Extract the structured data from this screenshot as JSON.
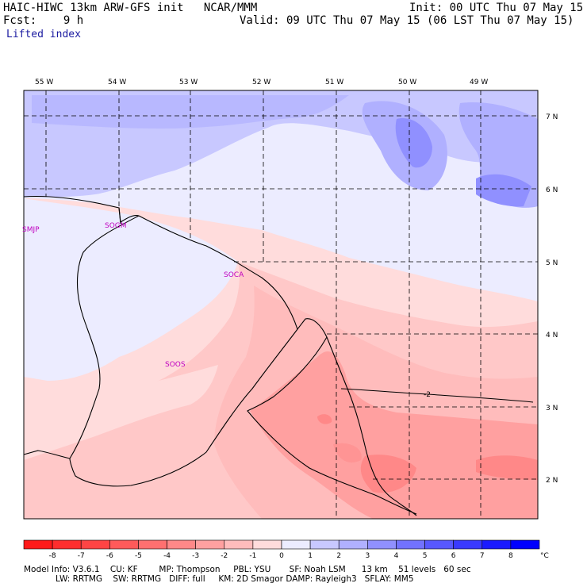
{
  "header": {
    "line1_left": "HAIC-HIWC 13km ARW-GFS init   NCAR/MMM",
    "line1_right": "Init: 00 UTC Thu 07 May 15",
    "line2_left": "Fcst:    9 h",
    "line2_right": "Valid: 09 UTC Thu 07 May 15 (06 LST Thu 07 May 15)",
    "field": "Lifted index"
  },
  "map": {
    "lon_labels": [
      "55 W",
      "54 W",
      "53 W",
      "52 W",
      "51 W",
      "50 W",
      "49 W"
    ],
    "lat_labels": [
      "7 N",
      "6 N",
      "5 N",
      "4 N",
      "3 N",
      "2 N"
    ],
    "stations": [
      "SMJP",
      "SOGM",
      "SOCA",
      "SOOS"
    ],
    "contour_label": "-2"
  },
  "colorbar": {
    "ticks": [
      "-8",
      "-7",
      "-6",
      "-5",
      "-4",
      "-3",
      "-2",
      "-1",
      "0",
      "1",
      "2",
      "3",
      "4",
      "5",
      "6",
      "7",
      "8"
    ],
    "unit": "°C",
    "colors": [
      "#ff1a1a",
      "#ff2e2e",
      "#ff4444",
      "#ff5a5a",
      "#ff7070",
      "#ff8888",
      "#ffa0a0",
      "#ffbcbc",
      "#ffdcdc",
      "#ececff",
      "#c8c8ff",
      "#b0b0ff",
      "#9090ff",
      "#7272ff",
      "#5858ff",
      "#3a3aff",
      "#1a1aff",
      "#0000ff"
    ]
  },
  "footer": {
    "line1": "Model Info: V3.6.1    CU: KF        MP: Thompson     PBL: YSU       SF: Noah LSM      13 km    51 levels   60 sec",
    "line2": "            LW: RRTMG    SW: RRTMG   DIFF: full     KM: 2D Smagor DAMP: Rayleigh3   SFLAY: MM5"
  }
}
